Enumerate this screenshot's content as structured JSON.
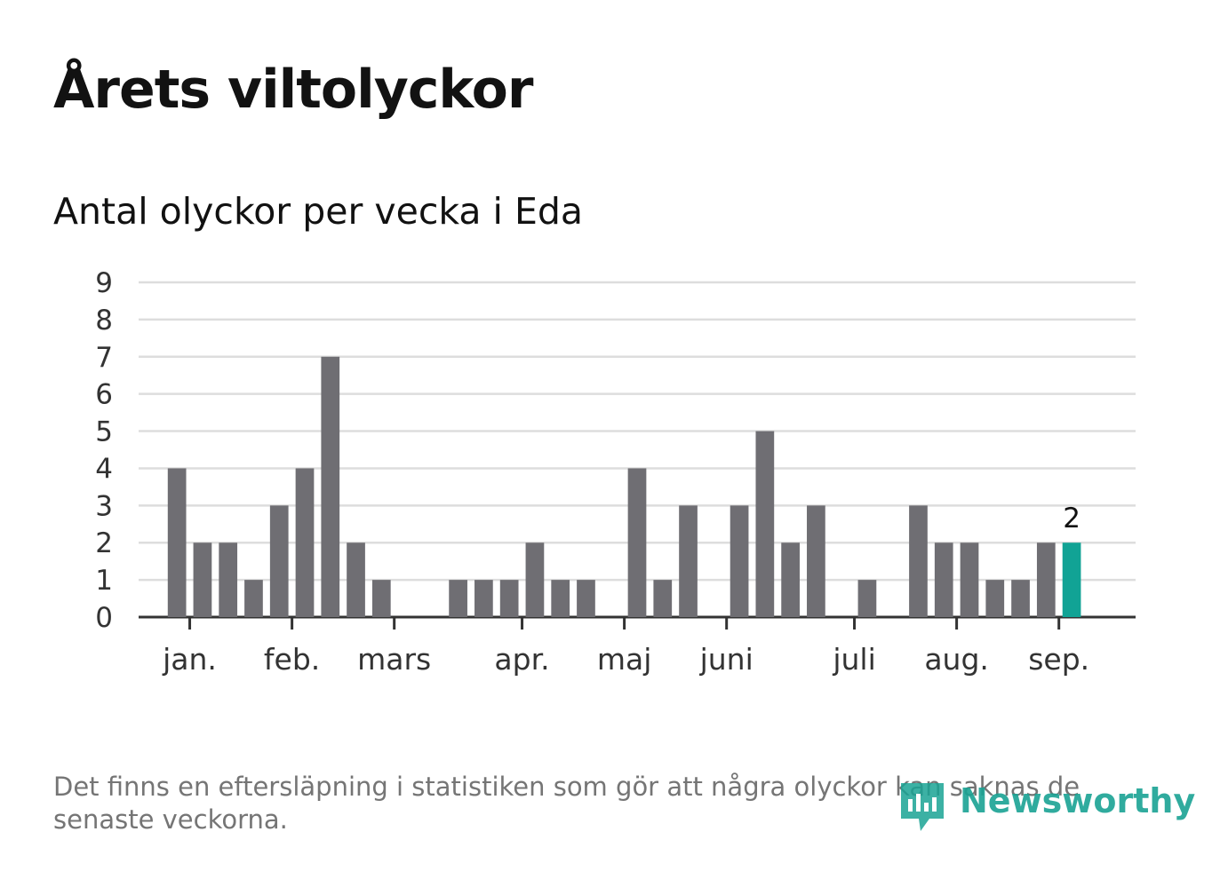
{
  "header": {
    "title": "Årets viltolyckor",
    "subtitle": "Antal olyckor per vecka i Eda"
  },
  "footer": {
    "note": "Det finns en eftersläpning i statistiken som gör att några olyckor kan saknas de senaste veckorna.",
    "logo_text": "Newsworthy"
  },
  "colors": {
    "bar": "#6f6e73",
    "highlight": "#11a395",
    "grid": "#dddddd",
    "axis": "#333333",
    "brand": "#1aa394"
  },
  "chart_data": {
    "type": "bar",
    "title": "Antal olyckor per vecka i Eda",
    "xlabel": "",
    "ylabel": "",
    "ylim": [
      0,
      9
    ],
    "y_ticks": [
      "0",
      "1",
      "2",
      "3",
      "4",
      "5",
      "6",
      "7",
      "8",
      "9"
    ],
    "grid": true,
    "x_ticks": [
      "jan.",
      "feb.",
      "mars",
      "apr.",
      "maj",
      "juni",
      "juli",
      "aug.",
      "sep."
    ],
    "x_tick_positions": [
      1.5,
      5.5,
      9.5,
      14.5,
      18.5,
      22.5,
      27.5,
      31.5,
      35.5
    ],
    "x_domain": [
      -0.5,
      38.5
    ],
    "values": [
      0,
      4,
      2,
      2,
      1,
      3,
      4,
      7,
      2,
      1,
      0,
      0,
      1,
      1,
      1,
      2,
      1,
      1,
      0,
      4,
      1,
      3,
      0,
      3,
      5,
      2,
      3,
      0,
      1,
      0,
      3,
      2,
      2,
      1,
      1,
      2,
      2
    ],
    "highlight_index": 36,
    "highlight_label": "2"
  }
}
